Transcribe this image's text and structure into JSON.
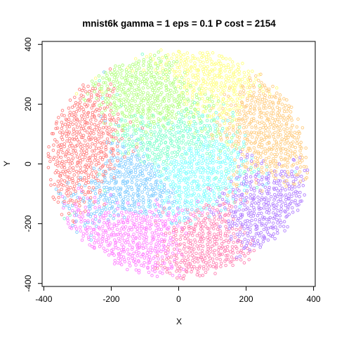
{
  "chart_data": {
    "type": "scatter",
    "title": "mnist6k gamma = 1 eps = 0.1 P cost = 2154",
    "xlabel": "X",
    "ylabel": "Y",
    "xlim": [
      -405,
      405
    ],
    "ylim": [
      -410,
      410
    ],
    "x_ticks": [
      -400,
      -200,
      0,
      200,
      400
    ],
    "y_ticks": [
      -400,
      -200,
      0,
      200,
      400
    ],
    "x_tick_labels": [
      "-400",
      "-200",
      "0",
      "200",
      "400"
    ],
    "y_tick_labels": [
      "-400",
      "-200",
      "0",
      "200",
      "400"
    ],
    "grid": false,
    "legend": "none",
    "marker": "open-circle",
    "point_extent": {
      "center": [
        0,
        0
      ],
      "radius_x": 390,
      "radius_y": 385
    },
    "clusters": [
      {
        "color": "#ff8080",
        "region": "left",
        "center": [
          -300,
          60
        ]
      },
      {
        "color": "#ffcc80",
        "region": "right",
        "center": [
          300,
          130
        ]
      },
      {
        "color": "#b3ff80",
        "region": "top-middle",
        "center": [
          -60,
          220
        ]
      },
      {
        "color": "#ffff80",
        "region": "top",
        "center": [
          80,
          320
        ]
      },
      {
        "color": "#80ffcc",
        "region": "center",
        "center": [
          -30,
          60
        ]
      },
      {
        "color": "#80ccff",
        "region": "center-left",
        "center": [
          -120,
          -60
        ]
      },
      {
        "color": "#80ffff",
        "region": "center",
        "center": [
          20,
          -20
        ]
      },
      {
        "color": "#ff80ff",
        "region": "bottom-left",
        "center": [
          -120,
          -260
        ]
      },
      {
        "color": "#ff80b3",
        "region": "bottom",
        "center": [
          80,
          -300
        ]
      },
      {
        "color": "#b380ff",
        "region": "bottom-right",
        "center": [
          280,
          -200
        ]
      }
    ]
  }
}
